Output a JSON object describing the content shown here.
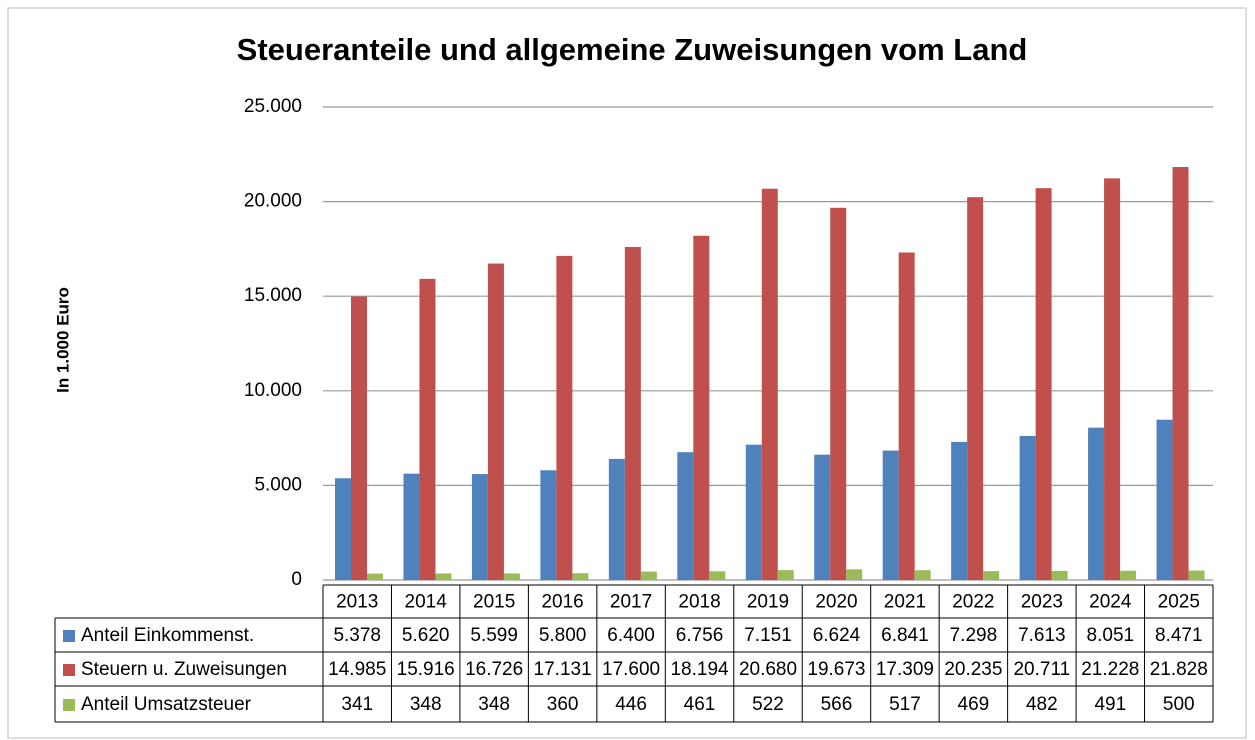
{
  "chart_data": {
    "type": "bar",
    "title": "Steueranteile und allgemeine Zuweisungen vom Land",
    "y_label": "In 1.000 Euro",
    "categories": [
      "2013",
      "2014",
      "2015",
      "2016",
      "2017",
      "2018",
      "2019",
      "2020",
      "2021",
      "2022",
      "2023",
      "2024",
      "2025"
    ],
    "series": [
      {
        "name": "Anteil Einkommenst.",
        "color": "#4f81bd",
        "values": [
          5378,
          5620,
          5599,
          5800,
          6400,
          6756,
          7151,
          6624,
          6841,
          7298,
          7613,
          8051,
          8471
        ],
        "value_labels": [
          "5.378",
          "5.620",
          "5.599",
          "5.800",
          "6.400",
          "6.756",
          "7.151",
          "6.624",
          "6.841",
          "7.298",
          "7.613",
          "8.051",
          "8.471"
        ]
      },
      {
        "name": "Steuern u. Zuweisungen",
        "color": "#c0504d",
        "values": [
          14985,
          15916,
          16726,
          17131,
          17600,
          18194,
          20680,
          19673,
          17309,
          20235,
          20711,
          21228,
          21828
        ],
        "value_labels": [
          "14.985",
          "15.916",
          "16.726",
          "17.131",
          "17.600",
          "18.194",
          "20.680",
          "19.673",
          "17.309",
          "20.235",
          "20.711",
          "21.228",
          "21.828"
        ]
      },
      {
        "name": "Anteil Umsatzsteuer",
        "color": "#9bbb59",
        "values": [
          341,
          348,
          348,
          360,
          446,
          461,
          522,
          566,
          517,
          469,
          482,
          491,
          500
        ]
      }
    ],
    "ylim": [
      0,
      25000
    ],
    "yticks": [
      0,
      {
        "value": 5000,
        "label": "5.000"
      },
      {
        "value": 10000,
        "label": "10.000"
      },
      {
        "value": 15000,
        "label": "15.000"
      },
      {
        "value": 20000,
        "label": "20.000"
      },
      {
        "value": 25000,
        "label": "25.000"
      }
    ],
    "grid": true
  }
}
